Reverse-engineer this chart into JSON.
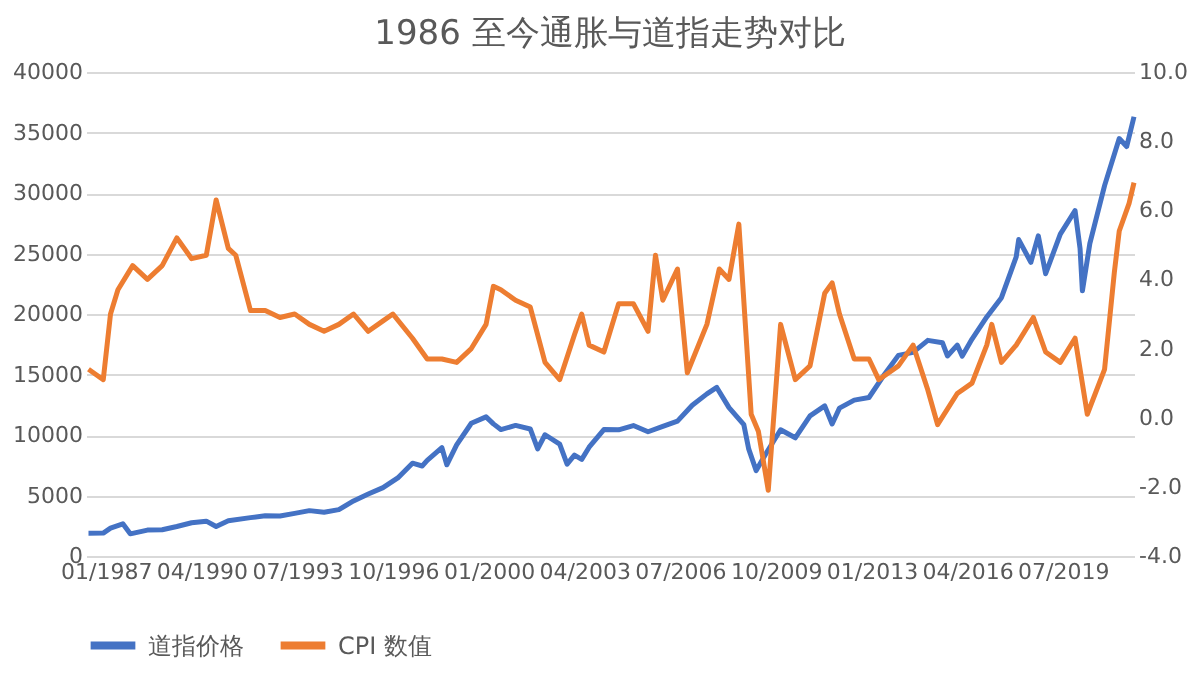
{
  "chart_data": {
    "type": "line",
    "title": "1986 至今通胀与道指走势对比",
    "x": [
      "1986-06",
      "1986-12",
      "1987-03",
      "1987-08",
      "1987-11",
      "1988-06",
      "1988-12",
      "1989-06",
      "1989-12",
      "1990-06",
      "1990-10",
      "1991-03",
      "1991-12",
      "1992-06",
      "1992-12",
      "1993-06",
      "1993-12",
      "1994-06",
      "1994-12",
      "1995-06",
      "1995-12",
      "1996-06",
      "1996-12",
      "1997-06",
      "1997-10",
      "1997-12",
      "1998-06",
      "1998-08",
      "1998-12",
      "1999-06",
      "1999-12",
      "2000-03",
      "2000-06",
      "2000-12",
      "2001-06",
      "2001-09",
      "2001-12",
      "2002-06",
      "2002-09",
      "2002-12",
      "2003-03",
      "2003-06",
      "2003-12",
      "2004-06",
      "2004-12",
      "2005-06",
      "2005-12",
      "2006-06",
      "2006-12",
      "2007-06",
      "2007-10",
      "2008-03",
      "2008-09",
      "2008-11",
      "2009-02",
      "2009-06",
      "2009-12",
      "2010-06",
      "2010-12",
      "2011-06",
      "2011-09",
      "2011-12",
      "2012-06",
      "2012-12",
      "2013-06",
      "2013-12",
      "2014-06",
      "2014-12",
      "2015-06",
      "2015-08",
      "2015-12",
      "2016-02",
      "2016-06",
      "2016-12",
      "2017-06",
      "2017-12",
      "2018-01",
      "2018-06",
      "2018-09",
      "2018-12",
      "2019-06",
      "2019-12",
      "2020-02",
      "2020-03",
      "2020-06",
      "2020-12",
      "2021-06",
      "2021-09",
      "2021-12"
    ],
    "series": [
      {
        "name": "道指价格",
        "color": "#4472c4",
        "values": [
          1890,
          1896,
          2300,
          2660,
          1830,
          2140,
          2170,
          2440,
          2750,
          2880,
          2440,
          2910,
          3170,
          3320,
          3300,
          3520,
          3750,
          3620,
          3830,
          4550,
          5120,
          5650,
          6450,
          7670,
          7440,
          7910,
          8950,
          7540,
          9180,
          10970,
          11500,
          10920,
          10450,
          10790,
          10500,
          8850,
          10020,
          9240,
          7590,
          8340,
          7990,
          8990,
          10450,
          10430,
          10780,
          10270,
          10720,
          11150,
          12460,
          13400,
          13930,
          12260,
          10850,
          8830,
          7060,
          8450,
          10430,
          9770,
          11580,
          12410,
          10910,
          12220,
          12880,
          13100,
          14910,
          16580,
          16830,
          17820,
          17620,
          16530,
          17430,
          16520,
          17930,
          19760,
          21350,
          24720,
          26150,
          24270,
          26460,
          23330,
          26600,
          28540,
          25410,
          21920,
          25810,
          30610,
          34500,
          33840,
          36300
        ]
      },
      {
        "name": "CPI 数值",
        "color": "#ed7d31",
        "axis": "y2",
        "x": [
          "1986-06",
          "1986-12",
          "1987-03",
          "1987-06",
          "1987-12",
          "1988-06",
          "1988-12",
          "1989-06",
          "1989-12",
          "1990-06",
          "1990-10",
          "1991-03",
          "1991-06",
          "1991-12",
          "1992-06",
          "1992-12",
          "1993-06",
          "1993-12",
          "1994-06",
          "1994-12",
          "1995-06",
          "1995-12",
          "1996-06",
          "1996-10",
          "1997-06",
          "1997-12",
          "1998-06",
          "1998-12",
          "1999-06",
          "1999-12",
          "2000-03",
          "2000-06",
          "2000-12",
          "2001-06",
          "2001-12",
          "2002-06",
          "2002-12",
          "2003-03",
          "2003-06",
          "2003-12",
          "2004-06",
          "2004-12",
          "2005-06",
          "2005-09",
          "2005-12",
          "2006-06",
          "2006-10",
          "2007-06",
          "2007-11",
          "2008-03",
          "2008-07",
          "2008-12",
          "2009-03",
          "2009-07",
          "2009-12",
          "2010-06",
          "2010-12",
          "2011-06",
          "2011-09",
          "2011-12",
          "2012-06",
          "2012-12",
          "2013-04",
          "2013-12",
          "2014-06",
          "2014-12",
          "2015-04",
          "2015-12",
          "2016-06",
          "2016-12",
          "2017-02",
          "2017-06",
          "2017-12",
          "2018-07",
          "2018-12",
          "2019-06",
          "2019-12",
          "2020-05",
          "2020-12",
          "2021-04",
          "2021-06",
          "2021-10",
          "2021-12"
        ],
        "values": [
          1.4,
          1.1,
          3.0,
          3.7,
          4.4,
          4.0,
          4.4,
          5.2,
          4.6,
          4.7,
          6.3,
          4.9,
          4.7,
          3.1,
          3.1,
          2.9,
          3.0,
          2.7,
          2.5,
          2.7,
          3.0,
          2.5,
          2.8,
          3.0,
          2.3,
          1.7,
          1.7,
          1.6,
          2.0,
          2.7,
          3.8,
          3.7,
          3.4,
          3.2,
          1.6,
          1.1,
          2.4,
          3.0,
          2.1,
          1.9,
          3.3,
          3.3,
          2.5,
          4.7,
          3.4,
          4.3,
          1.3,
          2.7,
          4.3,
          4.0,
          5.6,
          0.1,
          -0.4,
          -2.1,
          2.7,
          1.1,
          1.5,
          3.6,
          3.9,
          3.0,
          1.7,
          1.7,
          1.1,
          1.5,
          2.1,
          0.8,
          -0.2,
          0.7,
          1.0,
          2.1,
          2.7,
          1.6,
          2.1,
          2.9,
          1.9,
          1.6,
          2.3,
          0.1,
          1.4,
          4.2,
          5.4,
          6.2,
          6.8
        ]
      }
    ],
    "xlim": [
      "1986-05",
      "2021-12"
    ],
    "xticks": [
      {
        "value": "1987-01",
        "label": "01/1987"
      },
      {
        "value": "1990-04",
        "label": "04/1990"
      },
      {
        "value": "1993-07",
        "label": "07/1993"
      },
      {
        "value": "1996-10",
        "label": "10/1996"
      },
      {
        "value": "2000-01",
        "label": "01/2000"
      },
      {
        "value": "2003-04",
        "label": "04/2003"
      },
      {
        "value": "2006-07",
        "label": "07/2006"
      },
      {
        "value": "2009-10",
        "label": "10/2009"
      },
      {
        "value": "2013-01",
        "label": "01/2013"
      },
      {
        "value": "2016-04",
        "label": "04/2016"
      },
      {
        "value": "2019-07",
        "label": "07/2019"
      }
    ],
    "ylim": [
      0,
      40000
    ],
    "yticks": [
      0,
      5000,
      10000,
      15000,
      20000,
      25000,
      30000,
      35000,
      40000
    ],
    "y2lim": [
      -4,
      10
    ],
    "y2ticks": [
      {
        "value": -4,
        "label": "-4.0"
      },
      {
        "value": -2,
        "label": "-2.0"
      },
      {
        "value": 0,
        "label": "0.0"
      },
      {
        "value": 2,
        "label": "2.0"
      },
      {
        "value": 4,
        "label": "4.0"
      },
      {
        "value": 6,
        "label": "6.0"
      },
      {
        "value": 8,
        "label": "8.0"
      },
      {
        "value": 10,
        "label": "10.0"
      }
    ],
    "grid": "y",
    "legend": "bottom"
  }
}
